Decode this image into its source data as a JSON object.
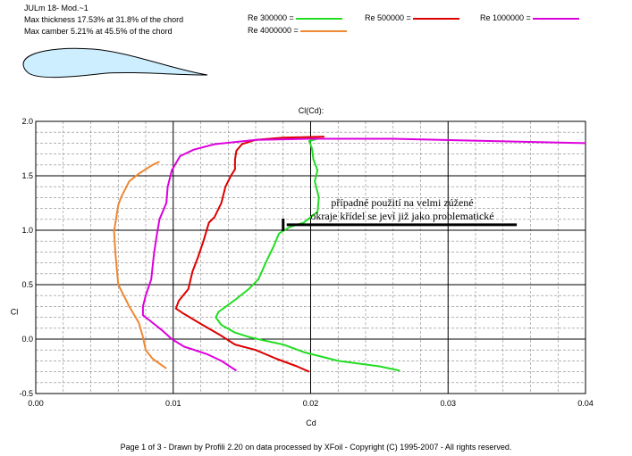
{
  "header": {
    "title": "JULm 18- Mod.~1",
    "thickness": "Max thickness 17.53% at 31.8% of the chord",
    "camber": "Max camber 5.21% at 45.5% of the chord"
  },
  "footer": "Page 1 of 3   -   Drawn by Profili 2.20 on data processed by  XFoil - Copyright (C) 1995-2007 - All rights reserved.",
  "colors": {
    "airfoil_fill": "#cceeff",
    "re300000": "#22dd22",
    "re500000": "#dd0000",
    "re1000000": "#dd00dd",
    "re4000000": "#ee8833"
  },
  "chart_data": {
    "type": "line",
    "title": "Cl(Cd):",
    "xlabel": "Cd",
    "ylabel": "Cl",
    "xlim": [
      0.0,
      0.04
    ],
    "ylim": [
      -0.5,
      2.0
    ],
    "x_ticks": [
      "0.00",
      "0.01",
      "0.02",
      "0.03",
      "0.04"
    ],
    "y_ticks": [
      "-0.5",
      "0.0",
      "0.5",
      "1.0",
      "1.5",
      "2.0"
    ],
    "grid": true,
    "legend_position": "top",
    "annotation": {
      "lines": [
        "případné použití na velmi zúžené",
        "okraje křídel se jeví již jako problematické"
      ],
      "arrow_from": [
        0.035,
        1.05
      ],
      "arrow_to": [
        0.018,
        1.05
      ]
    },
    "series": [
      {
        "name": "Re 300000 =",
        "color": "#22dd22",
        "points": [
          [
            0.0265,
            -0.29
          ],
          [
            0.025,
            -0.25
          ],
          [
            0.022,
            -0.2
          ],
          [
            0.0195,
            -0.12
          ],
          [
            0.018,
            -0.05
          ],
          [
            0.0165,
            -0.01
          ],
          [
            0.0155,
            0.02
          ],
          [
            0.0145,
            0.06
          ],
          [
            0.0135,
            0.13
          ],
          [
            0.0131,
            0.2
          ],
          [
            0.0133,
            0.25
          ],
          [
            0.0145,
            0.36
          ],
          [
            0.0155,
            0.46
          ],
          [
            0.0162,
            0.55
          ],
          [
            0.0168,
            0.72
          ],
          [
            0.0173,
            0.85
          ],
          [
            0.0177,
            0.97
          ],
          [
            0.0185,
            1.03
          ],
          [
            0.0195,
            1.07
          ],
          [
            0.0205,
            1.17
          ],
          [
            0.0206,
            1.3
          ],
          [
            0.0203,
            1.45
          ],
          [
            0.0205,
            1.55
          ],
          [
            0.0202,
            1.65
          ],
          [
            0.0201,
            1.75
          ],
          [
            0.0199,
            1.82
          ],
          [
            0.0205,
            1.84
          ]
        ]
      },
      {
        "name": "Re 500000 =",
        "color": "#dd0000",
        "points": [
          [
            0.0199,
            -0.3
          ],
          [
            0.019,
            -0.25
          ],
          [
            0.0175,
            -0.18
          ],
          [
            0.016,
            -0.1
          ],
          [
            0.0145,
            -0.05
          ],
          [
            0.0135,
            0.03
          ],
          [
            0.012,
            0.14
          ],
          [
            0.0108,
            0.23
          ],
          [
            0.0102,
            0.28
          ],
          [
            0.0104,
            0.35
          ],
          [
            0.0111,
            0.46
          ],
          [
            0.0114,
            0.62
          ],
          [
            0.0118,
            0.75
          ],
          [
            0.0122,
            0.9
          ],
          [
            0.0126,
            1.07
          ],
          [
            0.013,
            1.12
          ],
          [
            0.0135,
            1.25
          ],
          [
            0.0138,
            1.4
          ],
          [
            0.0142,
            1.5
          ],
          [
            0.0145,
            1.56
          ],
          [
            0.0145,
            1.65
          ],
          [
            0.0146,
            1.73
          ],
          [
            0.015,
            1.79
          ],
          [
            0.016,
            1.83
          ],
          [
            0.018,
            1.85
          ],
          [
            0.021,
            1.86
          ]
        ]
      },
      {
        "name": "Re 1000000 =",
        "color": "#dd00dd",
        "points": [
          [
            0.0146,
            -0.29
          ],
          [
            0.0135,
            -0.2
          ],
          [
            0.0125,
            -0.14
          ],
          [
            0.0108,
            -0.07
          ],
          [
            0.0099,
            0.0
          ],
          [
            0.0092,
            0.08
          ],
          [
            0.0084,
            0.16
          ],
          [
            0.0078,
            0.22
          ],
          [
            0.0078,
            0.3
          ],
          [
            0.008,
            0.4
          ],
          [
            0.0084,
            0.55
          ],
          [
            0.0086,
            0.78
          ],
          [
            0.0088,
            0.95
          ],
          [
            0.009,
            1.1
          ],
          [
            0.0095,
            1.25
          ],
          [
            0.0096,
            1.4
          ],
          [
            0.0099,
            1.55
          ],
          [
            0.0105,
            1.68
          ],
          [
            0.0115,
            1.74
          ],
          [
            0.013,
            1.79
          ],
          [
            0.016,
            1.83
          ],
          [
            0.02,
            1.84
          ],
          [
            0.026,
            1.84
          ],
          [
            0.033,
            1.82
          ],
          [
            0.04,
            1.8
          ]
        ]
      },
      {
        "name": "Re 4000000 =",
        "color": "#ee8833",
        "points": [
          [
            0.0095,
            -0.27
          ],
          [
            0.0085,
            -0.18
          ],
          [
            0.008,
            -0.1
          ],
          [
            0.0078,
            0.02
          ],
          [
            0.0075,
            0.15
          ],
          [
            0.0068,
            0.3
          ],
          [
            0.006,
            0.5
          ],
          [
            0.0058,
            0.78
          ],
          [
            0.0057,
            0.99
          ],
          [
            0.006,
            1.23
          ],
          [
            0.0062,
            1.3
          ],
          [
            0.0068,
            1.45
          ],
          [
            0.0075,
            1.52
          ],
          [
            0.0085,
            1.6
          ],
          [
            0.009,
            1.63
          ]
        ]
      }
    ]
  }
}
